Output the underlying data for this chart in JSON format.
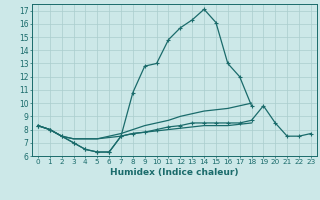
{
  "xlabel": "Humidex (Indice chaleur)",
  "background_color": "#cce8e8",
  "grid_color": "#aacece",
  "line_color": "#1a6b6b",
  "xlim": [
    -0.5,
    23.5
  ],
  "ylim": [
    6,
    17.5
  ],
  "xticks": [
    0,
    1,
    2,
    3,
    4,
    5,
    6,
    7,
    8,
    9,
    10,
    11,
    12,
    13,
    14,
    15,
    16,
    17,
    18,
    19,
    20,
    21,
    22,
    23
  ],
  "yticks": [
    6,
    7,
    8,
    9,
    10,
    11,
    12,
    13,
    14,
    15,
    16,
    17
  ],
  "series": [
    {
      "x": [
        0,
        1,
        2,
        3,
        4,
        5,
        6,
        7,
        8,
        9,
        10,
        11,
        12,
        13,
        14,
        15,
        16,
        17,
        18,
        19,
        20,
        21,
        22,
        23
      ],
      "y": [
        8.3,
        8.0,
        7.5,
        7.0,
        6.5,
        6.3,
        6.3,
        7.5,
        7.7,
        7.8,
        8.0,
        8.2,
        8.3,
        8.5,
        8.5,
        8.5,
        8.5,
        8.5,
        8.7,
        9.8,
        8.5,
        7.5,
        7.5,
        7.7
      ],
      "marker": true,
      "lw": 0.9
    },
    {
      "x": [
        0,
        1,
        2,
        3,
        4,
        5,
        6,
        7,
        8,
        9,
        10,
        11,
        12,
        13,
        14,
        15,
        16,
        17,
        18
      ],
      "y": [
        8.3,
        8.0,
        7.5,
        7.0,
        6.5,
        6.3,
        6.3,
        7.5,
        10.8,
        12.8,
        13.0,
        14.8,
        15.7,
        16.3,
        17.1,
        16.1,
        13.0,
        12.0,
        9.8
      ],
      "marker": true,
      "lw": 0.9
    },
    {
      "x": [
        0,
        1,
        2,
        3,
        4,
        5,
        6,
        7,
        8,
        9,
        10,
        11,
        12,
        13,
        14,
        15,
        16,
        17,
        18,
        19,
        20,
        21,
        22,
        23
      ],
      "y": [
        8.3,
        8.0,
        7.5,
        7.3,
        7.3,
        7.3,
        7.5,
        7.7,
        8.0,
        8.3,
        8.5,
        8.7,
        9.0,
        9.2,
        9.4,
        9.5,
        9.6,
        9.8,
        10.0,
        null,
        null,
        null,
        null,
        null
      ],
      "marker": false,
      "lw": 0.9
    },
    {
      "x": [
        0,
        1,
        2,
        3,
        4,
        5,
        6,
        7,
        8,
        9,
        10,
        11,
        12,
        13,
        14,
        15,
        16,
        17,
        18,
        19,
        20,
        21,
        22,
        23
      ],
      "y": [
        8.3,
        8.0,
        7.5,
        7.3,
        7.3,
        7.3,
        7.4,
        7.5,
        7.7,
        7.8,
        7.9,
        8.0,
        8.1,
        8.2,
        8.3,
        8.3,
        8.3,
        8.4,
        8.5,
        null,
        null,
        null,
        null,
        null
      ],
      "marker": false,
      "lw": 0.9
    }
  ]
}
